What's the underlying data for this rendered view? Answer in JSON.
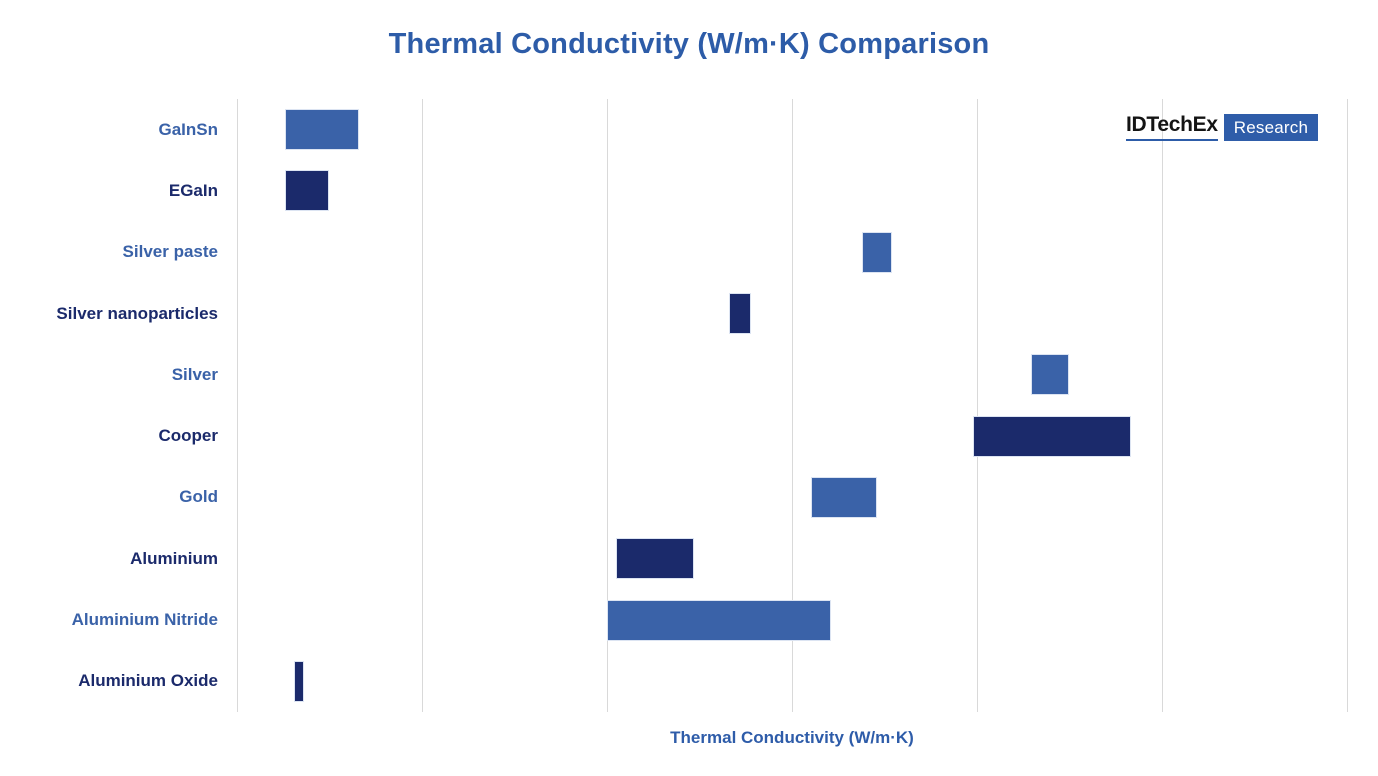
{
  "title": {
    "text": "Thermal Conductivity (W/m·K) Comparison",
    "color": "#2d5ca8"
  },
  "x_axis": {
    "label": "Thermal Conductivity (W/m·K)",
    "color": "#2e5ca9"
  },
  "logo": {
    "wordmark": "IDTechEx",
    "badge": "Research",
    "wordmark_color": "#141414",
    "underline_color": "#2d5ca8",
    "badge_bg": "#2f5da9",
    "badge_color": "#ffffff"
  },
  "colors": {
    "bar_light_blue": "#3a62a8",
    "bar_dark_navy": "#1b2a6b",
    "gridline": "#d9d9d9",
    "background": "#ffffff"
  },
  "chart_data": {
    "type": "bar",
    "subtype": "floating-range-horizontal",
    "title": "Thermal Conductivity (W/m·K) Comparison",
    "xlabel": "Thermal Conductivity (W/m·K)",
    "ylabel": "",
    "xlim": [
      0,
      600
    ],
    "gridline_step": 100,
    "grid": "vertical gridlines only, no x tick labels shown",
    "legend": "none",
    "categories": [
      "GaInSn",
      "EGaIn",
      "Silver paste",
      "Silver nanoparticles",
      "Silver",
      "Cooper",
      "Gold",
      "Aluminium",
      "Aluminium Nitride",
      "Aluminium Oxide"
    ],
    "series": [
      {
        "name": "Thermal conductivity range (W/m·K)",
        "ranges": [
          [
            26,
            66
          ],
          [
            26,
            50
          ],
          [
            338,
            354
          ],
          [
            266,
            278
          ],
          [
            429,
            450
          ],
          [
            398,
            483
          ],
          [
            310,
            346
          ],
          [
            205,
            247
          ],
          [
            200,
            321
          ],
          [
            31,
            36
          ]
        ]
      }
    ],
    "bar_color_keys": [
      "bar_light_blue",
      "bar_dark_navy",
      "bar_light_blue",
      "bar_dark_navy",
      "bar_light_blue",
      "bar_dark_navy",
      "bar_light_blue",
      "bar_dark_navy",
      "bar_light_blue",
      "bar_dark_navy"
    ]
  }
}
